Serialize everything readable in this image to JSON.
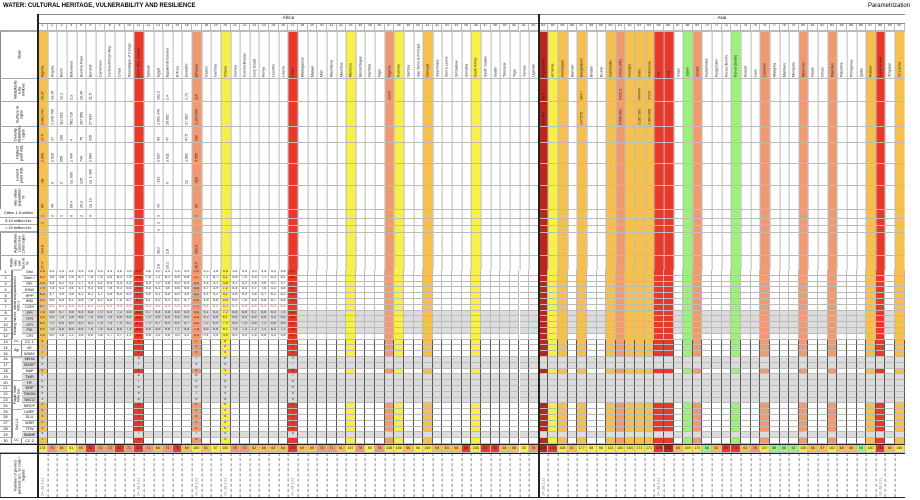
{
  "title": "WATER: CULTURAL HERITAGE, VULNERABILITY AND RESILIENCE",
  "parametrization": "Parametrization",
  "regions": [
    {
      "name": "Africa",
      "from": 1,
      "to": 52
    },
    {
      "name": "Asia",
      "from": 53,
      "to": 90
    }
  ],
  "colors": {
    "orange": "#f5c04e",
    "red": "#e8392a",
    "darkred": "#b8261c",
    "salmon": "#f09a72",
    "yellow": "#f8ef4a",
    "green": "#9df07a",
    "none": "#ffffff"
  },
  "row_labels": {
    "state": "State",
    "inh": "Inhabitants a by millions",
    "surf": "Surface in sqkm",
    "dens": "Density: inhabitants / sqkm",
    "high": "Highest point ASL",
    "low": "Lowest point ASL",
    "urban": "rate urban population %",
    "c1": "Cities: 1-5 million",
    "c2": "5-10 million inh.",
    "c3": "> 10 million inh.",
    "agri": "Agricultural Land Use 1,000 sqkm",
    "ratio": "Ratio rate sur- face in %",
    "bottom": "Number of pe-ried persons acc. to code / legend"
  },
  "groups": [
    "Existing indices, sorted and published in ROC s",
    "CC",
    "Agr",
    "Fragile State Flow Out",
    "Soil 1-5",
    "CC"
  ],
  "index_rows": [
    "Gini",
    "Dem I",
    "PFI",
    "EHW",
    "HPP",
    "IHDI",
    "CCPI",
    "EPI",
    "TFR",
    "CPI",
    "FSI",
    "CRI",
    "CC 1",
    "AY",
    "WSAY",
    "SEHA",
    "MSSP",
    "MaP",
    "TWR",
    "TIF",
    "ERP",
    "TWOM",
    "IWCO",
    "MRCP",
    "LWEF",
    "SLU",
    "WSR",
    "TFW",
    "SMMP",
    "CC 2"
  ],
  "countries": [
    {
      "n": "Algeria",
      "c": "orange",
      "inh": "42,97",
      "surf": "2.381.741",
      "dens": "17,5",
      "high": "2.908",
      "low": "-38",
      "urban": "65",
      "c1": "1",
      "c2": "1",
      "agri": "414,8",
      "ratio": "17,4"
    },
    {
      "n": "Angola",
      "inh": "33,78",
      "surf": "1.246.700",
      "dens": "27",
      "high": "2.619",
      "low": "0",
      "urban": "40",
      "c1": "2"
    },
    {
      "n": "Benin",
      "inh": "12,1",
      "surf": "112.622",
      "dens": "106",
      "high": "658",
      "low": "0",
      "c1": "1"
    },
    {
      "n": "Botswana",
      "inh": "2,3",
      "surf": "581.730",
      "dens": "4",
      "high": "1.494",
      "low": "ca. 600",
      "urban": "69,4",
      "c1": "0"
    },
    {
      "n": "Burkina Faso",
      "inh": "20,49",
      "surf": "267.950",
      "dens": "75",
      "high": "749",
      "low": "125",
      "urban": "30,3",
      "c1": "2"
    },
    {
      "n": "Burundi",
      "inh": "11,5",
      "surf": "27.834",
      "dens": "435",
      "high": "2.684",
      "low": "ca. 1.400",
      "urban": "ca. 13",
      "c1": "0"
    },
    {
      "n": "Cameroon"
    },
    {
      "n": "Central African Rep."
    },
    {
      "n": "Chad"
    },
    {
      "n": "Republique of Congo"
    },
    {
      "n": "Dem. Rep. Congo",
      "c": "red"
    },
    {
      "n": "Djibouti"
    },
    {
      "n": "Egypt",
      "inh": "102,3",
      "surf": "1.001.449",
      "dens": "99",
      "high": "2.637",
      "low": "-133",
      "urban": "43",
      "c1": "1",
      "c2": "2",
      "c3": "1",
      "agri": "38,2",
      "ratio": "3,8"
    },
    {
      "n": "Equatorial Guinea",
      "inh": "1,4",
      "surf": "28.051",
      "dens": "47",
      "high": "3.011",
      "low": "0",
      "agri": "2,8",
      "ratio": "10,1"
    },
    {
      "n": "Eritrea"
    },
    {
      "n": "Eswatini",
      "inh": "1,72",
      "surf": "17.363",
      "dens": "97,5",
      "high": "1.862",
      "low": "21"
    },
    {
      "n": "Ethiopia",
      "c": "salmon",
      "inh": "115",
      "surf": "1.104.300",
      "dens": "102",
      "high": "4.550",
      "low": "-116",
      "urban": "20",
      "c1": "1",
      "agri": "362,6",
      "ratio": "36,5"
    },
    {
      "n": "Gabon"
    },
    {
      "n": "Gambia"
    },
    {
      "n": "Ghana",
      "c": "yellow"
    },
    {
      "n": "Guinea"
    },
    {
      "n": "Guinea-Bissau"
    },
    {
      "n": "Ivory Coast"
    },
    {
      "n": "Kenya"
    },
    {
      "n": "Lesotho"
    },
    {
      "n": "Liberia"
    },
    {
      "n": "Libya",
      "c": "red"
    },
    {
      "n": "Madagascar"
    },
    {
      "n": "Malawi"
    },
    {
      "n": "Mali"
    },
    {
      "n": "Mauritania"
    },
    {
      "n": "Mauritius"
    },
    {
      "n": "Morocco",
      "c": "yellow"
    },
    {
      "n": "Mozambique"
    },
    {
      "n": "Namibia"
    },
    {
      "n": "Niger"
    },
    {
      "n": "Nigeria",
      "c": "salmon",
      "inh": "219,5"
    },
    {
      "n": "Ruanda",
      "c": "yellow"
    },
    {
      "n": "Sambia"
    },
    {
      "n": "Sao Tome & Principe"
    },
    {
      "n": "Senegal",
      "c": "orange"
    },
    {
      "n": "Seychelles"
    },
    {
      "n": "Sierra Leone"
    },
    {
      "n": "Simbabwe"
    },
    {
      "n": "Somalia"
    },
    {
      "n": "South Africa",
      "c": "yellow"
    },
    {
      "n": "South Sudan"
    },
    {
      "n": "Sudan"
    },
    {
      "n": "Tanzania"
    },
    {
      "n": "Togo"
    },
    {
      "n": "Tunisia"
    },
    {
      "n": "Uganda"
    },
    {
      "n": "Afghanistan",
      "c": "darkred",
      "inh": "38,9",
      "surf": "652.864"
    },
    {
      "n": "Armenia",
      "c": "yellow"
    },
    {
      "n": "Azerbaijan",
      "c": "orange"
    },
    {
      "n": "Bahrain"
    },
    {
      "n": "Bangladesh",
      "c": "orange",
      "inh": "164,7",
      "surf": "147.570"
    },
    {
      "n": "Bhutan"
    },
    {
      "n": "Brunei"
    },
    {
      "n": "Cambodia",
      "c": "orange"
    },
    {
      "n": "China (PR)",
      "c": "salmon",
      "inh": "1412,6",
      "surf": "9.596.961"
    },
    {
      "n": "Georgia",
      "c": "orange"
    },
    {
      "n": "India",
      "c": "orange",
      "inh": "######",
      "surf": "3.287.263"
    },
    {
      "n": "Indonesia",
      "c": "orange",
      "inh": "273,5",
      "surf": "1.904.569"
    },
    {
      "n": "Iran",
      "c": "red"
    },
    {
      "n": "Iraq",
      "c": "red"
    },
    {
      "n": "Israel"
    },
    {
      "n": "Japan",
      "c": "green"
    },
    {
      "n": "Jordan",
      "c": "salmon"
    },
    {
      "n": "Kazakhstan"
    },
    {
      "n": "Kyrgyzstan"
    },
    {
      "n": "Korea (North)"
    },
    {
      "n": "Korea (South)",
      "c": "green"
    },
    {
      "n": "Kuwait"
    },
    {
      "n": "Laos"
    },
    {
      "n": "Lebanon",
      "c": "salmon"
    },
    {
      "n": "Malaysia"
    },
    {
      "n": "Maldives"
    },
    {
      "n": "Mongolia"
    },
    {
      "n": "Myanmar",
      "c": "salmon"
    },
    {
      "n": "Nepal"
    },
    {
      "n": "Oman"
    },
    {
      "n": "Pakistan",
      "c": "salmon"
    },
    {
      "n": "Palestine"
    },
    {
      "n": "Philippines"
    },
    {
      "n": "Qatar"
    },
    {
      "n": "Russia",
      "c": "orange"
    },
    {
      "n": "Saudi Arabia",
      "c": "red"
    },
    {
      "n": "Singapur"
    },
    {
      "n": "Sri Lanka",
      "c": "orange"
    }
  ],
  "index_values": [
    [
      "3,5",
      "4,5",
      "4,5",
      "4,5",
      "5,5",
      "3,6",
      "4,5",
      "4,5",
      "4,8",
      "3,5",
      "4,0",
      "4,6",
      "3,0",
      "5,0",
      "4,5",
      "5,5",
      "3,0",
      "5,3",
      "3,6",
      "5,5",
      "3,6",
      "5,5",
      "3,0",
      "4,5",
      "5,0",
      "5,8",
      "4,2"
    ],
    [
      "8,3",
      "3,6",
      "3,6",
      "2,9",
      "6,7",
      "7,8",
      "7,6",
      "3,6",
      "6,3",
      "7,8",
      "6,8",
      "7,8",
      "7,1",
      "8,1",
      "8,9",
      "6,8",
      "5,7",
      "7,1",
      "6,7",
      "5,1",
      "6,8",
      "7,4",
      "4,5",
      "7,1",
      "6,3",
      "6,1",
      "8,0"
    ],
    [
      "5,5",
      "4,8",
      "6,2",
      "4,1",
      "2,7",
      "4,4",
      "5,1",
      "6,4",
      "5,4",
      "4,4",
      "4,2",
      "5,4",
      "7,0",
      "5,8",
      "8,0",
      "6,4",
      "4,0",
      "4,4",
      "3,1",
      "3,8",
      "4,1",
      "4,2",
      "2,6",
      "3,6",
      "4,1",
      "3,7",
      "5,7"
    ],
    [
      "7,9",
      "7,8",
      "4,3",
      "3,6",
      "5,7",
      "9,3",
      "6,6",
      "7,8",
      "9,3",
      "6,6",
      "9,3",
      "6,6",
      "6,3",
      "18",
      "6,6",
      "6,6",
      "6,6",
      "5,7",
      "3,9",
      "7,2",
      "6,4",
      "6,4",
      "5,7",
      "7,8",
      "4,3",
      "5,8",
      "9,3"
    ],
    [
      "6,4",
      "4,7",
      "3,9",
      "3,6",
      "4,2",
      "6,1",
      "4,7",
      "4,6",
      "6,0",
      "6,1",
      "6,2",
      "4,6",
      "6,1",
      "5,8",
      "6,0",
      "4,6",
      "6,1",
      "4,4",
      "4,2",
      "4,1",
      "4,6",
      "6,4",
      "3,6",
      "4,7",
      "6,2",
      "6,2",
      "6,1"
    ],
    [
      "4,0",
      "6,6",
      "6,6",
      "6,1",
      "6,8",
      "7,6",
      "6,2",
      "6,6",
      "7,6",
      "6,7",
      "6,7",
      "6,1",
      "5,0",
      "6,1",
      "6,1",
      "6,7",
      "6,5",
      "4,8",
      "6,6",
      "5,8",
      "6,6",
      "7,6",
      "6,5",
      "6,8",
      "6,7",
      "6,5",
      "7,6"
    ],
    [
      "5,7",
      "6,4",
      "6,4",
      "6,4",
      "6,4",
      "6,4",
      "6,4",
      "6,4",
      "6,4",
      "6,4",
      "6,4",
      "6,4",
      "4,6",
      "6,4",
      "6,4",
      "6,4",
      "6,4",
      "6,4",
      "6,4",
      "6,4",
      "6,4",
      "6,4",
      "6,4",
      "6,4",
      "6,4",
      "6,4",
      "6,4"
    ],
    [
      "7,8",
      "5,6",
      "6,7",
      "4,6",
      "6,4",
      "6,8",
      "7,0",
      "6,4",
      "7,2",
      "6,6",
      "6,8",
      "5,7",
      "6,4",
      "5,8",
      "6,8",
      "6,5",
      "6,8",
      "5,1",
      "6,4",
      "7,2",
      "6,8",
      "6,8",
      "6,7",
      "6,6",
      "6,4",
      "7,5",
      "6,6"
    ],
    [
      "4,0",
      "6,0",
      "7,5",
      "3,8",
      "6,6",
      "7,4",
      "6,6",
      "7,6",
      "6,6",
      "6,6",
      "6,8",
      "7,4",
      "4,6",
      "6,5",
      "6,6",
      "5,9",
      "6,6",
      "6,2",
      "6,0",
      "6,1",
      "6,6",
      "6,4",
      "6,8",
      "6,6",
      "4,4",
      "6,6",
      "6,6"
    ],
    [
      "6,6",
      "7,3",
      "6,6",
      "6,0",
      "6,0",
      "8,1",
      "7,5",
      "7,4",
      "7,9",
      "8,1",
      "8,1",
      "7,3",
      "6,7",
      "8,4",
      "8,4",
      "6,7",
      "6,8",
      "7,2",
      "6,9",
      "7,3",
      "6,8",
      "7,5",
      "6,6",
      "7,2",
      "6,8",
      "6,6",
      "8,1"
    ],
    [
      "6,0",
      "7,6",
      "6,6",
      "6,6",
      "6,6",
      "7,6",
      "7,6",
      "6,6",
      "8,6",
      "7,4",
      "8,6",
      "6,6",
      "6,6",
      "6,8",
      "7,7",
      "6,6",
      "7,6",
      "6,6",
      "6,6",
      "6,1",
      "7,6",
      "7,4",
      "7,2",
      "7,2",
      "6,3",
      "7,2",
      "7,6"
    ],
    [
      "4,4",
      "6,0",
      "1,6",
      "2,2",
      "3,8",
      "5,6",
      "3,8",
      "1,7",
      "3,7",
      "1,1",
      "3,9",
      "5,8",
      "1,6",
      "4,6",
      "3,0",
      "4,2",
      "6,0",
      "0,4",
      "4,4",
      "3,9",
      "6,0",
      "4,0",
      "1,6",
      "6,8",
      "4,0",
      "0,8",
      "5,7"
    ]
  ],
  "sparse_values": [
    {
      "col": 1,
      "vals": [
        "8",
        "7",
        "7",
        "5",
        "5",
        "6",
        "7",
        "6",
        "6",
        "5",
        "3",
        "3",
        "5",
        "4",
        "5",
        "5",
        "5",
        "7"
      ]
    },
    {
      "col": 11,
      "vals": [
        "9",
        "7",
        "6",
        "9",
        "7",
        "8",
        "8",
        "7",
        "8",
        "9",
        "6",
        "9",
        "5",
        "5",
        "5",
        "6",
        "7",
        "5"
      ]
    },
    {
      "col": 17,
      "vals": [
        "9",
        "9",
        "9",
        "7",
        "4",
        "6",
        "8",
        "5",
        "8",
        "7",
        "6",
        "5",
        "5",
        "4",
        "4",
        "5",
        "7",
        "5"
      ]
    },
    {
      "col": 20,
      "vals": [
        "8",
        "6",
        "5",
        "6",
        "5",
        "4",
        "7",
        "6",
        "4",
        "5",
        "6",
        "6",
        "4",
        "6",
        "5",
        "6",
        "5",
        "5"
      ]
    },
    {
      "col": 27,
      "vals": [
        "9",
        "9",
        "9",
        "9",
        "7",
        "8",
        "7",
        "6",
        "6",
        "5",
        "5",
        "9",
        "4",
        "4",
        "4",
        "5",
        "5",
        "7"
      ]
    }
  ],
  "sums": [
    173,
    75,
    65,
    51,
    65,
    82,
    74,
    72,
    82,
    71,
    200,
    71,
    66,
    71,
    79,
    69,
    180,
    61,
    57,
    150,
    70,
    72,
    62,
    66,
    62,
    64,
    194,
    69,
    65,
    75,
    71,
    61,
    157,
    78,
    55,
    78,
    158,
    156,
    66,
    56,
    169,
    65,
    64,
    66,
    80,
    158,
    81,
    83,
    64,
    68,
    53,
    75,
    209,
    148,
    168,
    61,
    177,
    58,
    56,
    151,
    164,
    164,
    171,
    171,
    195,
    212,
    65,
    169,
    170,
    58,
    62,
    80,
    130,
    61,
    76,
    157,
    55,
    56,
    52,
    155,
    66,
    67,
    162,
    68,
    65,
    55,
    160,
    198,
    60,
    166
  ],
  "bottom_dates": {
    "1": "14.-28.1.21",
    "11": "14.-28.1.21",
    "17": "14.-28.1.21",
    "20": "14.-28.1.21",
    "27": "14.-28.1.21",
    "53": "14.-28.1.21",
    "65": "14.-28.1.21",
    "88": "14.-28.1.21"
  }
}
